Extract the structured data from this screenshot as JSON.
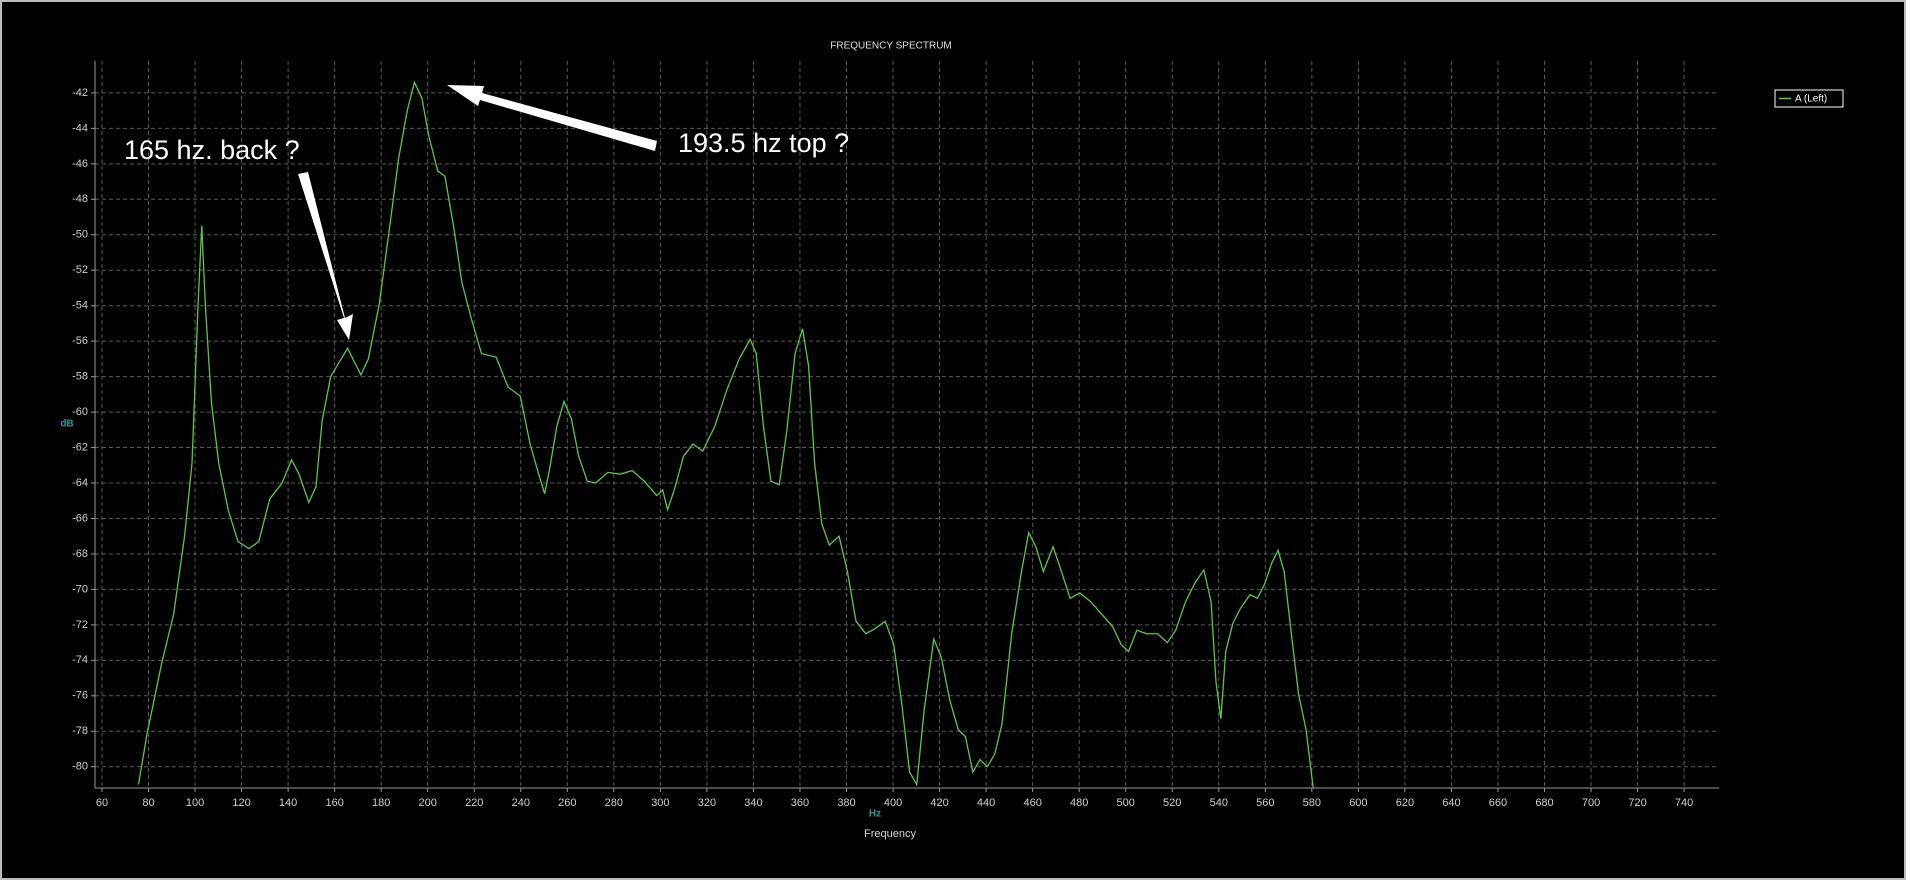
{
  "chart_data": {
    "type": "line",
    "title": "FREQUENCY SPECTRUM",
    "y_label": "dB",
    "x_unit": "Hz",
    "x_label": "Frequency",
    "annotations": [
      "165 hz. back ?",
      "193.5 hz top ?"
    ],
    "xlim": [
      57,
      755
    ],
    "ylim": [
      -81.2,
      -40.2
    ],
    "xticks": [
      60,
      80,
      100,
      120,
      140,
      160,
      180,
      200,
      220,
      240,
      260,
      280,
      300,
      320,
      340,
      360,
      380,
      400,
      420,
      440,
      460,
      480,
      500,
      520,
      540,
      560,
      580,
      600,
      620,
      640,
      660,
      680,
      700,
      720,
      740
    ],
    "yticks": [
      -80,
      -78,
      -76,
      -74,
      -72,
      -70,
      -68,
      -66,
      -64,
      -62,
      -60,
      -58,
      -56,
      -54,
      -52,
      -50,
      -48,
      -46,
      -44,
      -42
    ],
    "grid": true,
    "legend": "upper right",
    "x": [
      75.7,
      79.3,
      85.6,
      90.8,
      95.5,
      98.7,
      101.3,
      102.9,
      104.4,
      107.0,
      110.2,
      114.4,
      118.5,
      123.2,
      127.4,
      132.1,
      137.4,
      141.5,
      144.7,
      148.9,
      152.0,
      154.6,
      158.3,
      161.9,
      165.6,
      168.2,
      171.3,
      174.5,
      179.2,
      183.4,
      187.5,
      191.2,
      194.3,
      197.5,
      200.6,
      204.3,
      207.4,
      211.1,
      214.7,
      218.9,
      223.1,
      229.4,
      234.6,
      239.8,
      244.0,
      247.7,
      250.3,
      252.4,
      255.5,
      258.6,
      261.8,
      264.9,
      268.6,
      272.2,
      277.4,
      282.7,
      287.9,
      293.1,
      298.4,
      301.0,
      303.1,
      306.2,
      309.9,
      314.0,
      318.2,
      323.4,
      328.7,
      333.9,
      338.6,
      341.2,
      344.3,
      347.5,
      351.1,
      354.3,
      357.9,
      361.1,
      363.7,
      366.3,
      369.4,
      372.6,
      376.8,
      380.4,
      384.1,
      388.3,
      392.4,
      396.6,
      400.3,
      403.9,
      407.1,
      410.2,
      413.3,
      417.5,
      420.7,
      424.3,
      428.0,
      431.1,
      434.3,
      437.4,
      440.5,
      443.7,
      446.8,
      451.0,
      455.2,
      458.3,
      461.4,
      464.6,
      468.8,
      472.4,
      476.1,
      480.3,
      485.0,
      489.7,
      494.4,
      498.0,
      501.2,
      504.8,
      509.0,
      513.7,
      517.9,
      521.5,
      525.7,
      529.9,
      533.6,
      536.7,
      538.8,
      540.9,
      543.0,
      546.1,
      549.2,
      553.4,
      556.6,
      559.7,
      562.8,
      565.5,
      568.1,
      571.2,
      574.3,
      577.5,
      580.6
    ],
    "series": [
      {
        "name": "A (Left)",
        "color": "#5cc846",
        "values": [
          -81,
          -78.2,
          -74.2,
          -71.4,
          -67,
          -62.9,
          -53.9,
          -49.5,
          -53.9,
          -59.4,
          -62.9,
          -65.6,
          -67.3,
          -67.7,
          -67.3,
          -64.9,
          -64,
          -62.7,
          -63.5,
          -65.1,
          -64.2,
          -60.5,
          -58,
          -57.2,
          -56.4,
          -57.1,
          -57.9,
          -57,
          -53.9,
          -49.8,
          -45.7,
          -43,
          -41.4,
          -42.3,
          -44.5,
          -46.4,
          -46.7,
          -49.5,
          -52.7,
          -54.8,
          -56.7,
          -56.9,
          -58.6,
          -59.1,
          -61.8,
          -63.5,
          -64.6,
          -63.2,
          -60.8,
          -59.4,
          -60.4,
          -62.5,
          -63.9,
          -64,
          -63.4,
          -63.5,
          -63.3,
          -63.9,
          -64.7,
          -64.4,
          -65.5,
          -64.3,
          -62.5,
          -61.8,
          -62.2,
          -60.8,
          -58.7,
          -57,
          -55.9,
          -56.7,
          -60.8,
          -63.9,
          -64.1,
          -61.1,
          -56.7,
          -55.3,
          -57.4,
          -62.9,
          -66.3,
          -67.5,
          -67,
          -69,
          -71.8,
          -72.5,
          -72.2,
          -71.8,
          -73.1,
          -76.6,
          -80.3,
          -81,
          -76.9,
          -72.8,
          -73.8,
          -76.2,
          -77.9,
          -78.3,
          -80.3,
          -79.6,
          -80,
          -79.3,
          -77.6,
          -72.5,
          -69,
          -66.8,
          -67.6,
          -69,
          -67.6,
          -69,
          -70.5,
          -70.2,
          -70.7,
          -71.4,
          -72.1,
          -73.1,
          -73.5,
          -72.3,
          -72.5,
          -72.5,
          -73,
          -72.3,
          -70.7,
          -69.6,
          -68.9,
          -70.7,
          -75.2,
          -77.3,
          -73.5,
          -71.9,
          -71.1,
          -70.3,
          -70.5,
          -69.7,
          -68.5,
          -67.8,
          -69,
          -72.5,
          -75.9,
          -77.9,
          -81.2
        ]
      }
    ]
  }
}
